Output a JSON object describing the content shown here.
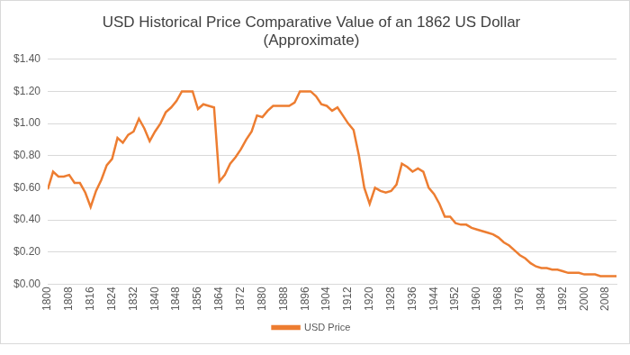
{
  "chart_data": {
    "type": "line",
    "title": [
      "USD Historical Price Comparative Value of an 1862 US Dollar",
      "(Approximate)"
    ],
    "x": [
      1800,
      1802,
      1804,
      1806,
      1808,
      1810,
      1812,
      1814,
      1816,
      1818,
      1820,
      1822,
      1824,
      1826,
      1828,
      1830,
      1832,
      1834,
      1836,
      1838,
      1840,
      1842,
      1844,
      1846,
      1848,
      1850,
      1852,
      1854,
      1856,
      1858,
      1860,
      1862,
      1864,
      1866,
      1868,
      1870,
      1872,
      1874,
      1876,
      1878,
      1880,
      1882,
      1884,
      1886,
      1888,
      1890,
      1892,
      1894,
      1896,
      1898,
      1900,
      1902,
      1904,
      1906,
      1908,
      1910,
      1912,
      1914,
      1916,
      1918,
      1920,
      1922,
      1924,
      1926,
      1928,
      1930,
      1932,
      1934,
      1936,
      1938,
      1940,
      1942,
      1944,
      1946,
      1948,
      1950,
      1952,
      1954,
      1956,
      1958,
      1960,
      1962,
      1964,
      1966,
      1968,
      1970,
      1972,
      1974,
      1976,
      1978,
      1980,
      1982,
      1984,
      1986,
      1988,
      1990,
      1992,
      1994,
      1996,
      1998,
      2000,
      2002,
      2004,
      2006,
      2008,
      2010,
      2012
    ],
    "series": [
      {
        "name": "USD Price",
        "color": "#ed7d31",
        "values": [
          0.59,
          0.7,
          0.67,
          0.67,
          0.68,
          0.63,
          0.63,
          0.57,
          0.48,
          0.58,
          0.65,
          0.74,
          0.78,
          0.91,
          0.88,
          0.93,
          0.95,
          1.03,
          0.97,
          0.89,
          0.95,
          1.0,
          1.07,
          1.1,
          1.14,
          1.2,
          1.2,
          1.2,
          1.09,
          1.12,
          1.11,
          1.1,
          0.64,
          0.68,
          0.75,
          0.79,
          0.84,
          0.9,
          0.95,
          1.05,
          1.04,
          1.08,
          1.11,
          1.11,
          1.11,
          1.11,
          1.13,
          1.2,
          1.2,
          1.2,
          1.17,
          1.12,
          1.11,
          1.08,
          1.1,
          1.05,
          1.0,
          0.96,
          0.8,
          0.6,
          0.5,
          0.6,
          0.58,
          0.57,
          0.58,
          0.62,
          0.75,
          0.73,
          0.7,
          0.72,
          0.7,
          0.6,
          0.56,
          0.5,
          0.42,
          0.42,
          0.38,
          0.37,
          0.37,
          0.35,
          0.34,
          0.33,
          0.32,
          0.31,
          0.29,
          0.26,
          0.24,
          0.21,
          0.18,
          0.16,
          0.13,
          0.11,
          0.1,
          0.1,
          0.09,
          0.09,
          0.08,
          0.07,
          0.07,
          0.07,
          0.06,
          0.06,
          0.06,
          0.05,
          0.05,
          0.05,
          0.05
        ]
      }
    ],
    "xlim": [
      1800,
      2012
    ],
    "xticks": [
      1800,
      1808,
      1816,
      1824,
      1832,
      1840,
      1848,
      1856,
      1864,
      1872,
      1880,
      1888,
      1896,
      1904,
      1912,
      1920,
      1928,
      1936,
      1944,
      1952,
      1960,
      1968,
      1976,
      1984,
      1992,
      2000,
      2008
    ],
    "ylim": [
      0,
      1.4
    ],
    "yticks": [
      {
        "value": 0,
        "label": "$0.00"
      },
      {
        "value": 0.2,
        "label": "$0.20"
      },
      {
        "value": 0.4,
        "label": "$0.40"
      },
      {
        "value": 0.6,
        "label": "$0.60"
      },
      {
        "value": 0.8,
        "label": "$0.80"
      },
      {
        "value": 1.0,
        "label": "$1.00"
      },
      {
        "value": 1.2,
        "label": "$1.20"
      },
      {
        "value": 1.4,
        "label": "$1.40"
      }
    ],
    "grid": true,
    "legend": "bottom"
  }
}
